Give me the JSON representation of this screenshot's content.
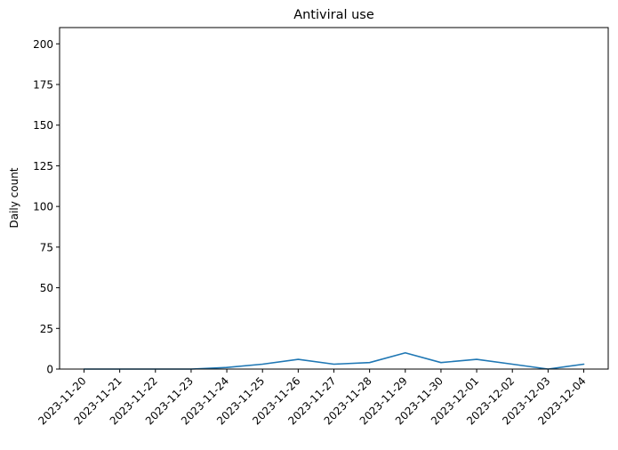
{
  "chart_data": {
    "type": "line",
    "title": "Antiviral use",
    "xlabel": "",
    "ylabel": "Daily count",
    "ylim": [
      0,
      210
    ],
    "yticks": [
      0,
      25,
      50,
      75,
      100,
      125,
      150,
      175,
      200
    ],
    "grid": false,
    "categories": [
      "2023-11-20",
      "2023-11-21",
      "2023-11-22",
      "2023-11-23",
      "2023-11-24",
      "2023-11-25",
      "2023-11-26",
      "2023-11-27",
      "2023-11-28",
      "2023-11-29",
      "2023-11-30",
      "2023-12-01",
      "2023-12-02",
      "2023-12-03",
      "2023-12-04"
    ],
    "series": [
      {
        "values": [
          0,
          0,
          0,
          0,
          1,
          3,
          6,
          3,
          4,
          10,
          4,
          6,
          3,
          0,
          3
        ],
        "color": "#1f77b4"
      }
    ]
  }
}
